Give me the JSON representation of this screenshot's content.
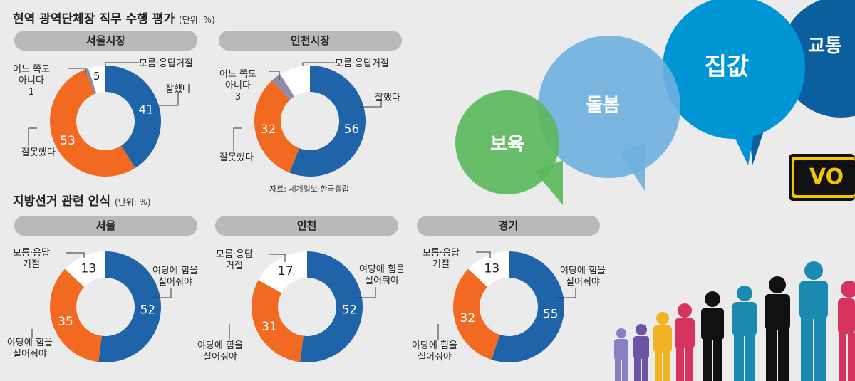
{
  "section1": {
    "title": "현역 광역단체장 직무 수행 평가",
    "unit": "(단위: %)",
    "source": "자료: 세계일보·한국갤럽"
  },
  "section2": {
    "title": "지방선거 관련 인식",
    "unit": "(단위: %)"
  },
  "bubbles": {
    "b1": "보육",
    "b2": "돌봄",
    "b3": "집값",
    "b4": "교통"
  },
  "vote_text": "VO",
  "chart_data": [
    {
      "type": "pie",
      "title": "서울시장",
      "labels": {
        "good": "잘했다",
        "bad": "잘못했다",
        "neither_1": "어느 쪽도",
        "neither_2": "아니다",
        "dk": "모름·응답거절"
      },
      "values": {
        "good": 41,
        "bad": 53,
        "neither": 1,
        "dk": 5
      },
      "colors": {
        "good": "#1f64a8",
        "bad": "#f26a21",
        "neither": "#8c8ca6",
        "dk": "#ffffff"
      }
    },
    {
      "type": "pie",
      "title": "인천시장",
      "labels": {
        "good": "잘했다",
        "bad": "잘못했다",
        "neither_1": "어느 쪽도",
        "neither_2": "아니다",
        "dk": "모름·응답거절"
      },
      "values": {
        "good": 56,
        "bad": 32,
        "neither": 3,
        "dk": 9
      },
      "colors": {
        "good": "#1f64a8",
        "bad": "#f26a21",
        "neither": "#8c8ca6",
        "dk": "#ffffff"
      }
    },
    {
      "type": "pie",
      "title": "서울",
      "labels": {
        "ruling_1": "여당에 힘을",
        "ruling_2": "실어줘야",
        "opp_1": "야당에 힘을",
        "opp_2": "실어줘야",
        "dk_1": "모름·응답",
        "dk_2": "거절"
      },
      "values": {
        "ruling": 52,
        "opp": 35,
        "dk": 13
      },
      "colors": {
        "ruling": "#1f64a8",
        "opp": "#f26a21",
        "dk": "#ffffff"
      }
    },
    {
      "type": "pie",
      "title": "인천",
      "labels": {
        "ruling_1": "여당에 힘을",
        "ruling_2": "실어줘야",
        "opp_1": "야당에 힘을",
        "opp_2": "실어줘야",
        "dk_1": "모름·응답",
        "dk_2": "거절"
      },
      "values": {
        "ruling": 52,
        "opp": 31,
        "dk": 17
      },
      "colors": {
        "ruling": "#1f64a8",
        "opp": "#f26a21",
        "dk": "#ffffff"
      }
    },
    {
      "type": "pie",
      "title": "경기",
      "labels": {
        "ruling_1": "여당에 힘을",
        "ruling_2": "실어줘야",
        "opp_1": "야당에 힘을",
        "opp_2": "실어줘야",
        "dk_1": "모름·응답",
        "dk_2": "거절"
      },
      "values": {
        "ruling": 55,
        "opp": 32,
        "dk": 13
      },
      "colors": {
        "ruling": "#1f64a8",
        "opp": "#f26a21",
        "dk": "#ffffff"
      }
    }
  ]
}
